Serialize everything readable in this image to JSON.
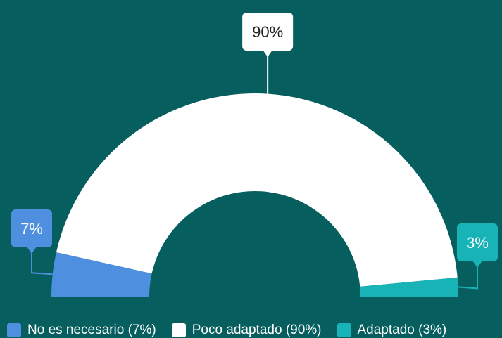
{
  "chart_data": {
    "type": "pie",
    "subtype": "semi-donut",
    "series": [
      {
        "name": "No es necesario",
        "value": 7,
        "label": "7%",
        "legend": "No es necesario (7%)",
        "color": "#4f8fe0",
        "text_color": "#ffffff"
      },
      {
        "name": "Poco adaptado",
        "value": 90,
        "label": "90%",
        "legend": "Poco adaptado (90%)",
        "color": "#ffffff",
        "text_color": "#222222"
      },
      {
        "name": "Adaptado",
        "value": 3,
        "label": "3%",
        "legend": "Adaptado (3%)",
        "color": "#17b3b7",
        "text_color": "#ffffff"
      }
    ],
    "legend_position": "bottom",
    "background": "#075e5e"
  }
}
